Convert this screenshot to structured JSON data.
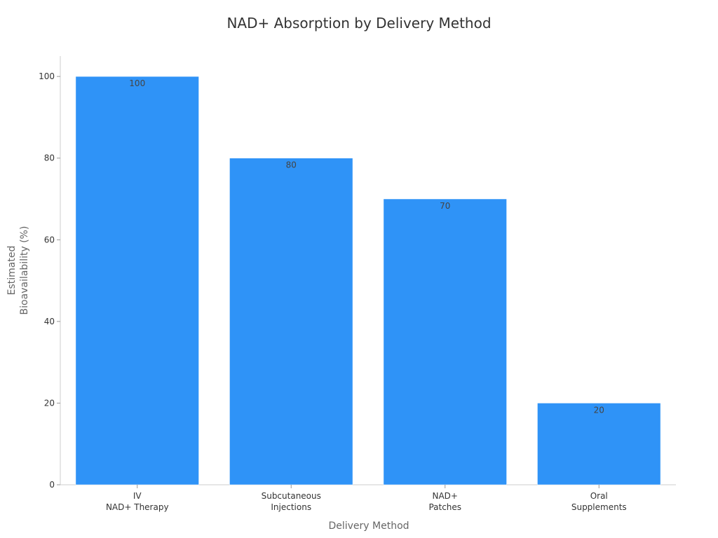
{
  "chart_data": {
    "type": "bar",
    "title": "NAD+ Absorption by Delivery Method",
    "xlabel": "Delivery Method",
    "ylabel": [
      "Estimated",
      "Bioavailability (%)"
    ],
    "categories": [
      [
        "IV",
        "NAD+ Therapy"
      ],
      [
        "Subcutaneous",
        "Injections"
      ],
      [
        "NAD+",
        "Patches"
      ],
      [
        "Oral",
        "Supplements"
      ]
    ],
    "values": [
      100,
      80,
      70,
      20
    ],
    "data_labels": [
      "100",
      "80",
      "70",
      "20"
    ],
    "yticks": [
      0,
      20,
      40,
      60,
      80,
      100
    ],
    "ytick_labels": [
      "0",
      "20",
      "40",
      "60",
      "80",
      "100"
    ],
    "ylim": [
      0,
      105
    ],
    "grid": false,
    "bar_color": "#2f93f7"
  }
}
